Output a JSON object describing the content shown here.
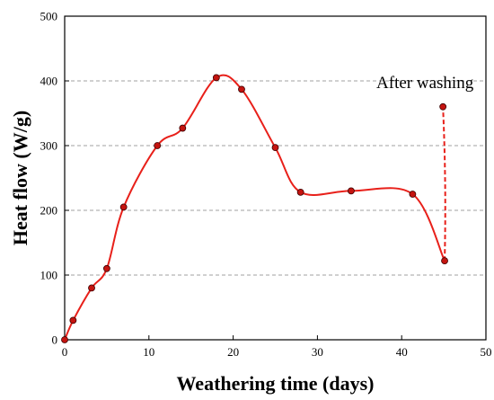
{
  "chart_data": {
    "type": "line",
    "xlabel": "Weathering time (days)",
    "ylabel": "Heat flow (W/g)",
    "xlim": [
      0,
      50
    ],
    "ylim": [
      0,
      500
    ],
    "xticks": [
      0,
      10,
      20,
      30,
      40,
      50
    ],
    "yticks": [
      0,
      100,
      200,
      300,
      400,
      500
    ],
    "grid": "horizontal dashed",
    "series": [
      {
        "style": "solid",
        "color": "#e8201a",
        "marker_color": "#c41410",
        "x": [
          0,
          1,
          3.2,
          5,
          7,
          11,
          14,
          18,
          21,
          25,
          28,
          34,
          41.3,
          45.1
        ],
        "y": [
          0,
          30,
          80,
          110,
          205,
          300,
          327,
          405,
          387,
          297,
          228,
          230,
          225,
          122
        ]
      },
      {
        "style": "dashed",
        "color": "#e8201a",
        "marker_color": "#c41410",
        "x": [
          45.1,
          44.9
        ],
        "y": [
          122,
          360
        ]
      }
    ],
    "annotations": [
      {
        "text": "After washing",
        "x": 37,
        "y": 389
      }
    ]
  }
}
